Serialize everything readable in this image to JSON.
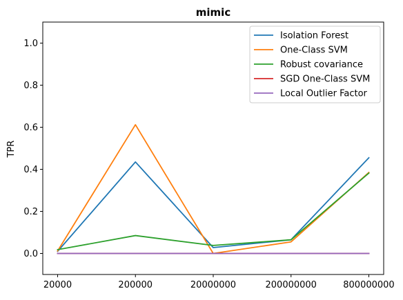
{
  "chart_data": {
    "type": "line",
    "title": "mimic",
    "xlabel": "",
    "ylabel": "TPR",
    "categories": [
      "20000",
      "200000",
      "20000000",
      "200000000",
      "800000000"
    ],
    "ylim": [
      -0.1,
      1.1
    ],
    "yticks": [
      0.0,
      0.2,
      0.4,
      0.6,
      0.8,
      1.0
    ],
    "ytick_labels": [
      "0.0",
      "0.2",
      "0.4",
      "0.6",
      "0.8",
      "1.0"
    ],
    "grid": false,
    "legend_position": "top-right",
    "series": [
      {
        "name": "Isolation Forest",
        "color": "#1f77b4",
        "values": [
          0.01,
          0.435,
          0.028,
          0.065,
          0.455
        ]
      },
      {
        "name": "One-Class SVM",
        "color": "#ff7f0e",
        "values": [
          0.012,
          0.612,
          0.0,
          0.055,
          0.385
        ]
      },
      {
        "name": "Robust covariance",
        "color": "#2ca02c",
        "values": [
          0.018,
          0.085,
          0.038,
          0.065,
          0.382
        ]
      },
      {
        "name": "SGD One-Class SVM",
        "color": "#d62728",
        "values": [
          0.0,
          0.0,
          0.0,
          0.0,
          0.0
        ]
      },
      {
        "name": "Local Outlier Factor",
        "color": "#9467bd",
        "values": [
          0.0,
          0.0,
          0.0,
          0.0,
          0.0
        ]
      }
    ]
  }
}
